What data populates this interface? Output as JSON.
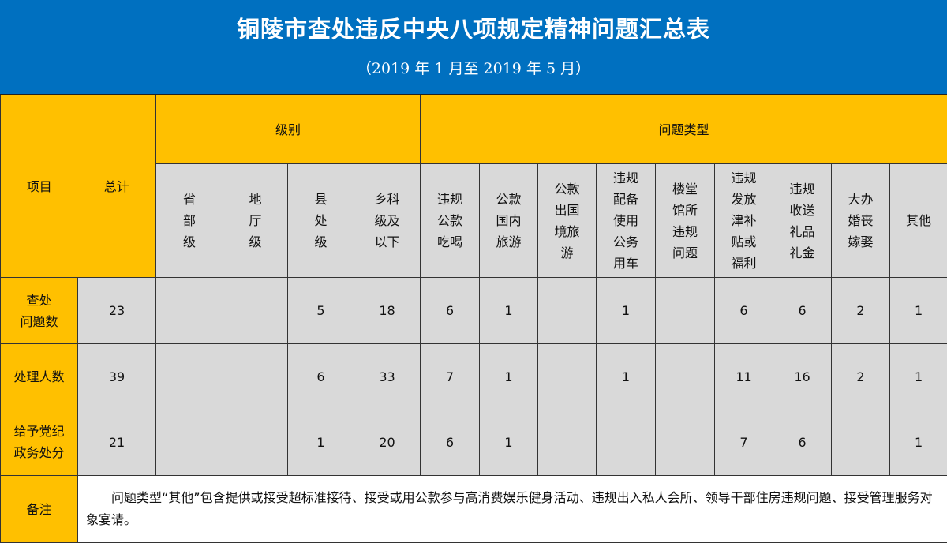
{
  "header": {
    "title": "铜陵市查处违反中央八项规定精神问题汇总表",
    "subtitle": "（2019 年 1 月至 2019 年 5 月）"
  },
  "colors": {
    "banner": "#0070c0",
    "header_fill": "#ffc000",
    "data_fill": "#d9d9d9"
  },
  "table": {
    "item_label": "项目",
    "total_label": "总计",
    "group_level": "级别",
    "group_type": "问题类型",
    "columns": [
      "省\n部\n级",
      "地\n厅\n级",
      "县\n处\n级",
      "乡科\n级及\n以下",
      "违规\n公款\n吃喝",
      "公款\n国内\n旅游",
      "公款\n出国\n境旅\n游",
      "违规\n配备\n使用\n公务\n用车",
      "楼堂\n馆所\n违规\n问题",
      "违规\n发放\n津补\n贴或\n福利",
      "违规\n收送\n礼品\n礼金",
      "大办\n婚丧\n嫁娶",
      "其他"
    ],
    "rows": [
      {
        "label": "查处\n问题数",
        "total": "23",
        "values": [
          "",
          "",
          "5",
          "18",
          "6",
          "1",
          "",
          "1",
          "",
          "6",
          "6",
          "2",
          "1"
        ]
      },
      {
        "label": "处理人数",
        "total": "39",
        "values": [
          "",
          "",
          "6",
          "33",
          "7",
          "1",
          "",
          "1",
          "",
          "11",
          "16",
          "2",
          "1"
        ]
      },
      {
        "label": "给予党纪\n政务处分",
        "total": "21",
        "values": [
          "",
          "",
          "1",
          "20",
          "6",
          "1",
          "",
          "",
          "",
          "7",
          "6",
          "",
          "1"
        ]
      }
    ],
    "remark_label": "备注",
    "remark_text": "问题类型“其他”包含提供或接受超标准接待、接受或用公款参与高消费娱乐健身活动、违规出入私人会所、领导干部住房违规问题、接受管理服务对象宴请。"
  }
}
